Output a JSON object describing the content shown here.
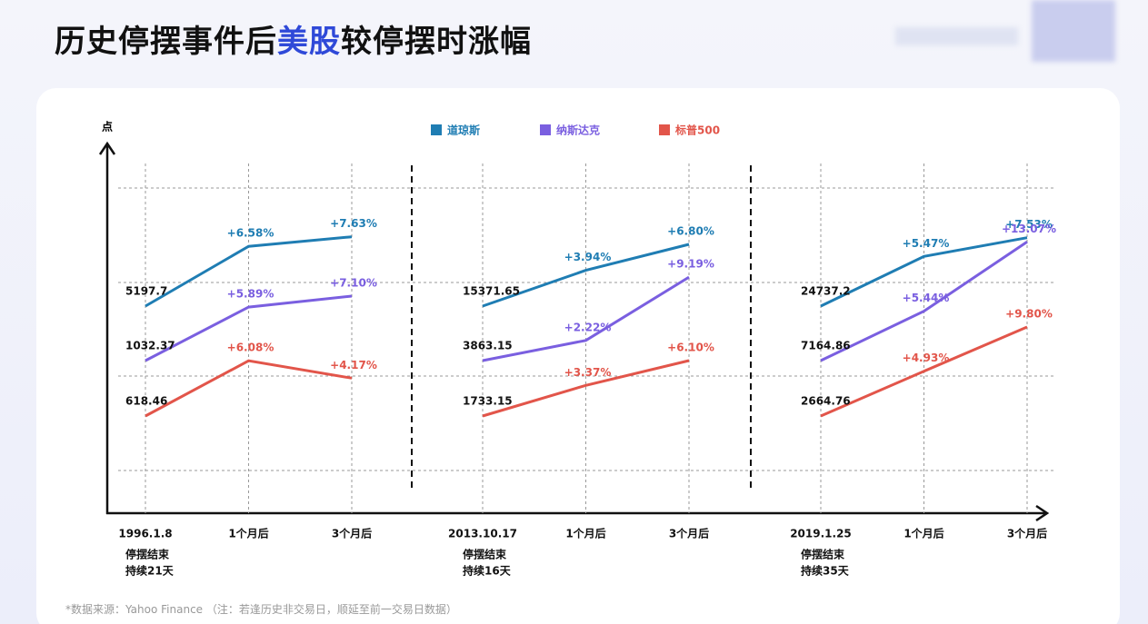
{
  "title": [
    "历史停摆事件后",
    "美股",
    "较停摆时涨幅"
  ],
  "source": "*数据来源：Yahoo Finance （注：若逢历史非交易日，顺延至前一交易日数据）",
  "chart_data": [
    {
      "type": "line",
      "ylabel": "点",
      "categories": [
        "1996.1.8",
        "1个月后",
        "3个月后"
      ],
      "notes": [
        "停摆结束",
        "持续21天"
      ],
      "series": [
        {
          "name": "道琼斯",
          "color": "#1f7db3",
          "values": [
            5197.7,
            6.58,
            7.63
          ],
          "value_labels": [
            "5197.7",
            "+6.58%",
            "+7.63%"
          ]
        },
        {
          "name": "纳斯达克",
          "color": "#7a5fe0",
          "values": [
            1032.37,
            5.89,
            7.1
          ],
          "value_labels": [
            "1032.37",
            "+5.89%",
            "+7.10%"
          ]
        },
        {
          "name": "标普500",
          "color": "#e2554a",
          "values": [
            618.46,
            6.08,
            4.17
          ],
          "value_labels": [
            "618.46",
            "+6.08%",
            "+4.17%"
          ]
        }
      ]
    },
    {
      "type": "line",
      "categories": [
        "2013.10.17",
        "1个月后",
        "3个月后"
      ],
      "notes": [
        "停摆结束",
        "持续16天"
      ],
      "series": [
        {
          "name": "道琼斯",
          "color": "#1f7db3",
          "values": [
            15371.65,
            3.94,
            6.8
          ],
          "value_labels": [
            "15371.65",
            "+3.94%",
            "+6.80%"
          ]
        },
        {
          "name": "纳斯达克",
          "color": "#7a5fe0",
          "values": [
            3863.15,
            2.22,
            9.19
          ],
          "value_labels": [
            "3863.15",
            "+2.22%",
            "+9.19%"
          ]
        },
        {
          "name": "标普500",
          "color": "#e2554a",
          "values": [
            1733.15,
            3.37,
            6.1
          ],
          "value_labels": [
            "1733.15",
            "+3.37%",
            "+6.10%"
          ]
        }
      ]
    },
    {
      "type": "line",
      "categories": [
        "2019.1.25",
        "1个月后",
        "3个月后"
      ],
      "notes": [
        "停摆结束",
        "持续35天"
      ],
      "series": [
        {
          "name": "道琼斯",
          "color": "#1f7db3",
          "values": [
            24737.2,
            5.47,
            7.53
          ],
          "value_labels": [
            "24737.2",
            "+5.47%",
            "+7.53%"
          ]
        },
        {
          "name": "纳斯达克",
          "color": "#7a5fe0",
          "values": [
            7164.86,
            5.44,
            13.07
          ],
          "value_labels": [
            "7164.86",
            "+5.44%",
            "+13.07%"
          ]
        },
        {
          "name": "标普500",
          "color": "#e2554a",
          "values": [
            2664.76,
            4.93,
            9.8
          ],
          "value_labels": [
            "2664.76",
            "+4.93%",
            "+9.80%"
          ]
        }
      ]
    }
  ]
}
